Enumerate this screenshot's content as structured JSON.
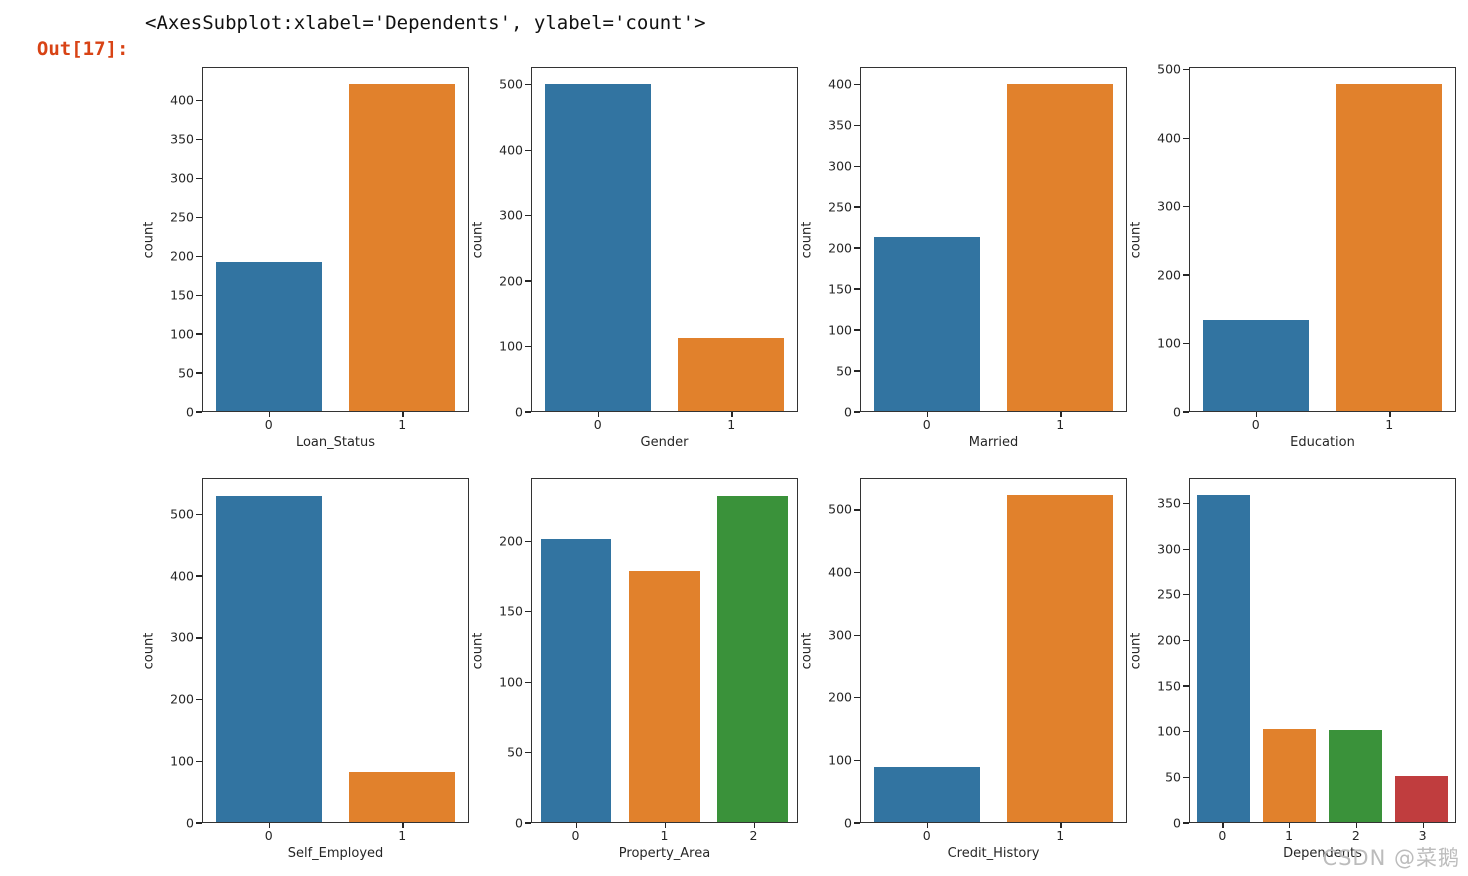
{
  "output": {
    "prompt": "Out[17]:",
    "repr": "<AxesSubplot:xlabel='Dependents', ylabel='count'>"
  },
  "watermark": "CSDN @菜鹅",
  "colors": {
    "prompt_red": "#d84315",
    "spine": "#333333",
    "text": "#262626",
    "watermark_gray": "#bcbcbc",
    "palette": [
      "#3274a1",
      "#e1812c",
      "#3a923a",
      "#c03d3e"
    ]
  },
  "chart_data": [
    {
      "type": "bar",
      "xlabel": "Loan_Status",
      "ylabel": "count",
      "categories": [
        "0",
        "1"
      ],
      "values": [
        192,
        422
      ],
      "yticks": [
        0,
        50,
        100,
        150,
        200,
        250,
        300,
        350,
        400
      ],
      "ylim": [
        0,
        443
      ],
      "grid": false,
      "legend": "none"
    },
    {
      "type": "bar",
      "xlabel": "Gender",
      "ylabel": "count",
      "categories": [
        "0",
        "1"
      ],
      "values": [
        502,
        112
      ],
      "yticks": [
        0,
        100,
        200,
        300,
        400,
        500
      ],
      "ylim": [
        0,
        527
      ],
      "grid": false,
      "legend": "none"
    },
    {
      "type": "bar",
      "xlabel": "Married",
      "ylabel": "count",
      "categories": [
        "0",
        "1"
      ],
      "values": [
        213,
        401
      ],
      "yticks": [
        0,
        50,
        100,
        150,
        200,
        250,
        300,
        350,
        400
      ],
      "ylim": [
        0,
        421
      ],
      "grid": false,
      "legend": "none"
    },
    {
      "type": "bar",
      "xlabel": "Education",
      "ylabel": "count",
      "categories": [
        "0",
        "1"
      ],
      "values": [
        134,
        480
      ],
      "yticks": [
        0,
        100,
        200,
        300,
        400,
        500
      ],
      "ylim": [
        0,
        504
      ],
      "grid": false,
      "legend": "none"
    },
    {
      "type": "bar",
      "xlabel": "Self_Employed",
      "ylabel": "count",
      "categories": [
        "0",
        "1"
      ],
      "values": [
        532,
        82
      ],
      "yticks": [
        0,
        100,
        200,
        300,
        400,
        500
      ],
      "ylim": [
        0,
        559
      ],
      "grid": false,
      "legend": "none"
    },
    {
      "type": "bar",
      "xlabel": "Property_Area",
      "ylabel": "count",
      "categories": [
        "0",
        "1",
        "2"
      ],
      "values": [
        202,
        179,
        233
      ],
      "yticks": [
        0,
        50,
        100,
        150,
        200
      ],
      "ylim": [
        0,
        245
      ],
      "grid": false,
      "legend": "none"
    },
    {
      "type": "bar",
      "xlabel": "Credit_History",
      "ylabel": "count",
      "categories": [
        "0",
        "1"
      ],
      "values": [
        89,
        525
      ],
      "yticks": [
        0,
        100,
        200,
        300,
        400,
        500
      ],
      "ylim": [
        0,
        551
      ],
      "grid": false,
      "legend": "none"
    },
    {
      "type": "bar",
      "xlabel": "Dependents",
      "ylabel": "count",
      "categories": [
        "0",
        "1",
        "2",
        "3"
      ],
      "values": [
        360,
        102,
        101,
        51
      ],
      "yticks": [
        0,
        50,
        100,
        150,
        200,
        250,
        300,
        350
      ],
      "ylim": [
        0,
        378
      ],
      "grid": false,
      "legend": "none"
    }
  ]
}
